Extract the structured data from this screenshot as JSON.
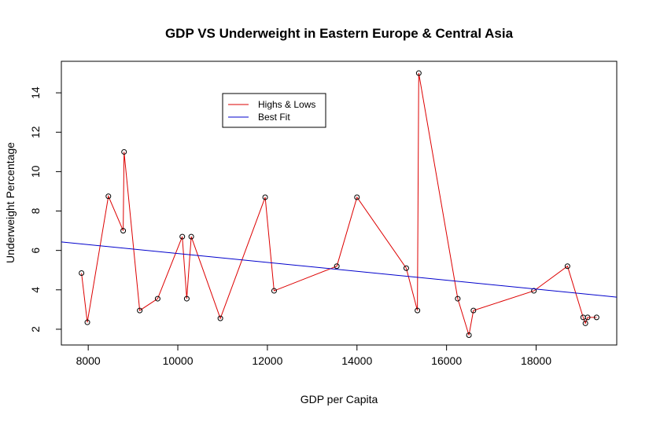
{
  "chart_data": {
    "type": "line",
    "title": "GDP VS Underweight in Eastern Europe & Central Asia",
    "xlabel": "GDP per Capita",
    "ylabel": "Underweight Percentage",
    "xlim": [
      7400,
      19800
    ],
    "ylim": [
      1.2,
      15.6
    ],
    "x_ticks": [
      8000,
      10000,
      12000,
      14000,
      16000,
      18000
    ],
    "y_ticks": [
      2,
      4,
      6,
      8,
      10,
      12,
      14
    ],
    "grid": false,
    "legend_position": "top-center",
    "series": [
      {
        "name": "Highs & Lows",
        "color": "#dd0000",
        "marker": "open-circle",
        "points": [
          [
            7850,
            4.85
          ],
          [
            7980,
            2.35
          ],
          [
            8450,
            8.75
          ],
          [
            8780,
            7.0
          ],
          [
            8800,
            11.0
          ],
          [
            9150,
            2.95
          ],
          [
            9550,
            3.55
          ],
          [
            10100,
            6.7
          ],
          [
            10200,
            3.55
          ],
          [
            10300,
            6.7
          ],
          [
            10950,
            2.55
          ],
          [
            11950,
            8.7
          ],
          [
            12150,
            3.95
          ],
          [
            13550,
            5.2
          ],
          [
            14000,
            8.7
          ],
          [
            15100,
            5.1
          ],
          [
            15350,
            2.95
          ],
          [
            15380,
            15.0
          ],
          [
            16250,
            3.55
          ],
          [
            16500,
            1.7
          ],
          [
            16600,
            2.95
          ],
          [
            17950,
            3.95
          ],
          [
            18700,
            5.2
          ],
          [
            19050,
            2.6
          ],
          [
            19100,
            2.3
          ],
          [
            19150,
            2.6
          ],
          [
            19350,
            2.6
          ]
        ]
      },
      {
        "name": "Best Fit",
        "color": "#0000cc",
        "marker": "none",
        "points": [
          [
            7400,
            6.43
          ],
          [
            19800,
            3.63
          ]
        ]
      }
    ]
  }
}
